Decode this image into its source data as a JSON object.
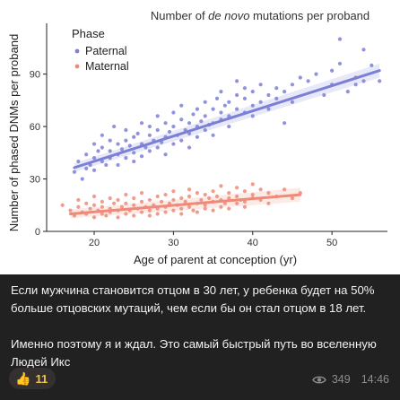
{
  "post": {
    "caption_p1": "Если мужчина становится отцом в 30 лет, у ребенка будет на 50% больше отцовских мутаций, чем если бы он стал отцом в 18 лет.",
    "caption_p2": "Именно поэтому я и ждал. Это самый быстрый путь во вселенную Людей Икс",
    "reaction": {
      "emoji": "👍",
      "emoji_name": "thumbs-up-icon",
      "count": "11"
    },
    "views": "349",
    "time": "14:46",
    "icons": {
      "views": "eye-icon"
    }
  },
  "colors": {
    "paternal": "#7b7fd6",
    "maternal": "#f08a78",
    "background": "#212121",
    "caption_text": "#f2f2f2",
    "reaction_count": "#f0c24a"
  },
  "chart_data": {
    "type": "scatter",
    "title_pre": "Number of ",
    "title_italic": "de novo",
    "title_post": " mutations per proband",
    "xlabel": "Age of parent at conception (yr)",
    "ylabel": "Number of phased DNMs per proband",
    "xlim": [
      14,
      57
    ],
    "ylim": [
      0,
      117
    ],
    "xticks": [
      20,
      30,
      40,
      50
    ],
    "yticks": [
      0,
      30,
      60,
      90
    ],
    "grid": false,
    "legend_title": "Phase",
    "legend_position": "top-left",
    "series": [
      {
        "name": "Paternal",
        "trend": {
          "x": [
            17.5,
            56
          ],
          "y": [
            36.5,
            92
          ]
        },
        "points": [
          [
            17.5,
            34
          ],
          [
            18,
            40
          ],
          [
            18.5,
            30
          ],
          [
            19,
            44
          ],
          [
            19,
            36
          ],
          [
            19.5,
            38
          ],
          [
            20,
            50
          ],
          [
            20,
            42
          ],
          [
            20,
            35
          ],
          [
            20.5,
            46
          ],
          [
            21,
            40
          ],
          [
            21,
            48
          ],
          [
            21,
            55
          ],
          [
            21.5,
            38
          ],
          [
            22,
            42
          ],
          [
            22,
            52
          ],
          [
            22,
            46
          ],
          [
            22.5,
            60
          ],
          [
            23,
            44
          ],
          [
            23,
            50
          ],
          [
            23,
            38
          ],
          [
            23.5,
            47
          ],
          [
            24,
            52
          ],
          [
            24,
            58
          ],
          [
            24,
            42
          ],
          [
            24.5,
            49
          ],
          [
            25,
            45
          ],
          [
            25,
            54
          ],
          [
            25,
            40
          ],
          [
            25.5,
            56
          ],
          [
            26,
            50
          ],
          [
            26,
            62
          ],
          [
            26,
            43
          ],
          [
            26.5,
            48
          ],
          [
            27,
            55
          ],
          [
            27,
            46
          ],
          [
            27,
            60
          ],
          [
            27.5,
            52
          ],
          [
            28,
            48
          ],
          [
            28,
            58
          ],
          [
            28,
            66
          ],
          [
            28.5,
            51
          ],
          [
            29,
            54
          ],
          [
            29,
            44
          ],
          [
            29,
            62
          ],
          [
            29.5,
            57
          ],
          [
            30,
            60
          ],
          [
            30,
            50
          ],
          [
            30,
            68
          ],
          [
            30.5,
            55
          ],
          [
            31,
            52
          ],
          [
            31,
            64
          ],
          [
            31,
            72
          ],
          [
            31.5,
            58
          ],
          [
            32,
            56
          ],
          [
            32,
            62
          ],
          [
            32,
            48
          ],
          [
            32.5,
            67
          ],
          [
            33,
            60
          ],
          [
            33,
            70
          ],
          [
            33,
            54
          ],
          [
            33.5,
            63
          ],
          [
            34,
            58
          ],
          [
            34,
            74
          ],
          [
            34,
            66
          ],
          [
            34.5,
            61
          ],
          [
            35,
            62
          ],
          [
            35,
            70
          ],
          [
            35,
            55
          ],
          [
            35.5,
            76
          ],
          [
            36,
            64
          ],
          [
            36,
            80
          ],
          [
            36,
            68
          ],
          [
            36.5,
            72
          ],
          [
            37,
            66
          ],
          [
            37,
            74
          ],
          [
            37,
            60
          ],
          [
            38,
            70
          ],
          [
            38,
            78
          ],
          [
            38,
            86
          ],
          [
            39,
            68
          ],
          [
            39,
            76
          ],
          [
            39,
            82
          ],
          [
            40,
            72
          ],
          [
            40,
            80
          ],
          [
            40,
            66
          ],
          [
            41,
            74
          ],
          [
            41,
            84
          ],
          [
            42,
            78
          ],
          [
            42,
            70
          ],
          [
            43,
            82
          ],
          [
            43,
            76
          ],
          [
            44,
            80
          ],
          [
            45,
            74
          ],
          [
            45,
            84
          ],
          [
            47,
            86
          ],
          [
            48,
            90
          ],
          [
            49,
            78
          ],
          [
            50,
            84
          ],
          [
            51,
            110
          ],
          [
            51,
            96
          ],
          [
            52,
            80
          ],
          [
            53,
            88
          ],
          [
            53,
            84
          ],
          [
            54,
            104
          ],
          [
            54,
            86
          ],
          [
            55,
            95
          ],
          [
            56,
            86
          ],
          [
            50,
            92
          ],
          [
            46,
            88
          ],
          [
            44,
            62
          ]
        ]
      },
      {
        "name": "Maternal",
        "trend": {
          "x": [
            17,
            46
          ],
          "y": [
            10,
            21
          ]
        },
        "points": [
          [
            16,
            15
          ],
          [
            17,
            12
          ],
          [
            17.5,
            9
          ],
          [
            18,
            14
          ],
          [
            18,
            18
          ],
          [
            18.5,
            11
          ],
          [
            19,
            10
          ],
          [
            19,
            16
          ],
          [
            19.5,
            13
          ],
          [
            20,
            8
          ],
          [
            20,
            15
          ],
          [
            20,
            20
          ],
          [
            20.5,
            12
          ],
          [
            21,
            10
          ],
          [
            21,
            17
          ],
          [
            21,
            14
          ],
          [
            21.5,
            9
          ],
          [
            22,
            13
          ],
          [
            22,
            19
          ],
          [
            22,
            11
          ],
          [
            22.5,
            16
          ],
          [
            23,
            12
          ],
          [
            23,
            8
          ],
          [
            23,
            18
          ],
          [
            23.5,
            14
          ],
          [
            24,
            10
          ],
          [
            24,
            16
          ],
          [
            24,
            21
          ],
          [
            24.5,
            12
          ],
          [
            25,
            15
          ],
          [
            25,
            9
          ],
          [
            25,
            19
          ],
          [
            25.5,
            13
          ],
          [
            26,
            11
          ],
          [
            26,
            17
          ],
          [
            26,
            22
          ],
          [
            26.5,
            14
          ],
          [
            27,
            12
          ],
          [
            27,
            18
          ],
          [
            27,
            9
          ],
          [
            27.5,
            15
          ],
          [
            28,
            13
          ],
          [
            28,
            20
          ],
          [
            28,
            10
          ],
          [
            28.5,
            17
          ],
          [
            29,
            14
          ],
          [
            29,
            11
          ],
          [
            29,
            21
          ],
          [
            29.5,
            16
          ],
          [
            30,
            12
          ],
          [
            30,
            18
          ],
          [
            30,
            23
          ],
          [
            30.5,
            15
          ],
          [
            31,
            13
          ],
          [
            31,
            19
          ],
          [
            31,
            10
          ],
          [
            31.5,
            17
          ],
          [
            32,
            14
          ],
          [
            32,
            20
          ],
          [
            32,
            24
          ],
          [
            32.5,
            12
          ],
          [
            33,
            16
          ],
          [
            33,
            22
          ],
          [
            33,
            11
          ],
          [
            33.5,
            18
          ],
          [
            34,
            15
          ],
          [
            34,
            21
          ],
          [
            34,
            13
          ],
          [
            34.5,
            19
          ],
          [
            35,
            17
          ],
          [
            35,
            12
          ],
          [
            35,
            23
          ],
          [
            35.5,
            20
          ],
          [
            36,
            14
          ],
          [
            36,
            26
          ],
          [
            36,
            18
          ],
          [
            36.5,
            16
          ],
          [
            37,
            19
          ],
          [
            37,
            22
          ],
          [
            37,
            13
          ],
          [
            38,
            20
          ],
          [
            38,
            25
          ],
          [
            38,
            16
          ],
          [
            38.5,
            18
          ],
          [
            39,
            17
          ],
          [
            39,
            23
          ],
          [
            39,
            14
          ],
          [
            40,
            21
          ],
          [
            40,
            19
          ],
          [
            40,
            27
          ],
          [
            41,
            18
          ],
          [
            41,
            24
          ],
          [
            42,
            22
          ],
          [
            42,
            16
          ],
          [
            43,
            20
          ],
          [
            44,
            24
          ],
          [
            45,
            19
          ],
          [
            46,
            22
          ]
        ]
      }
    ]
  }
}
